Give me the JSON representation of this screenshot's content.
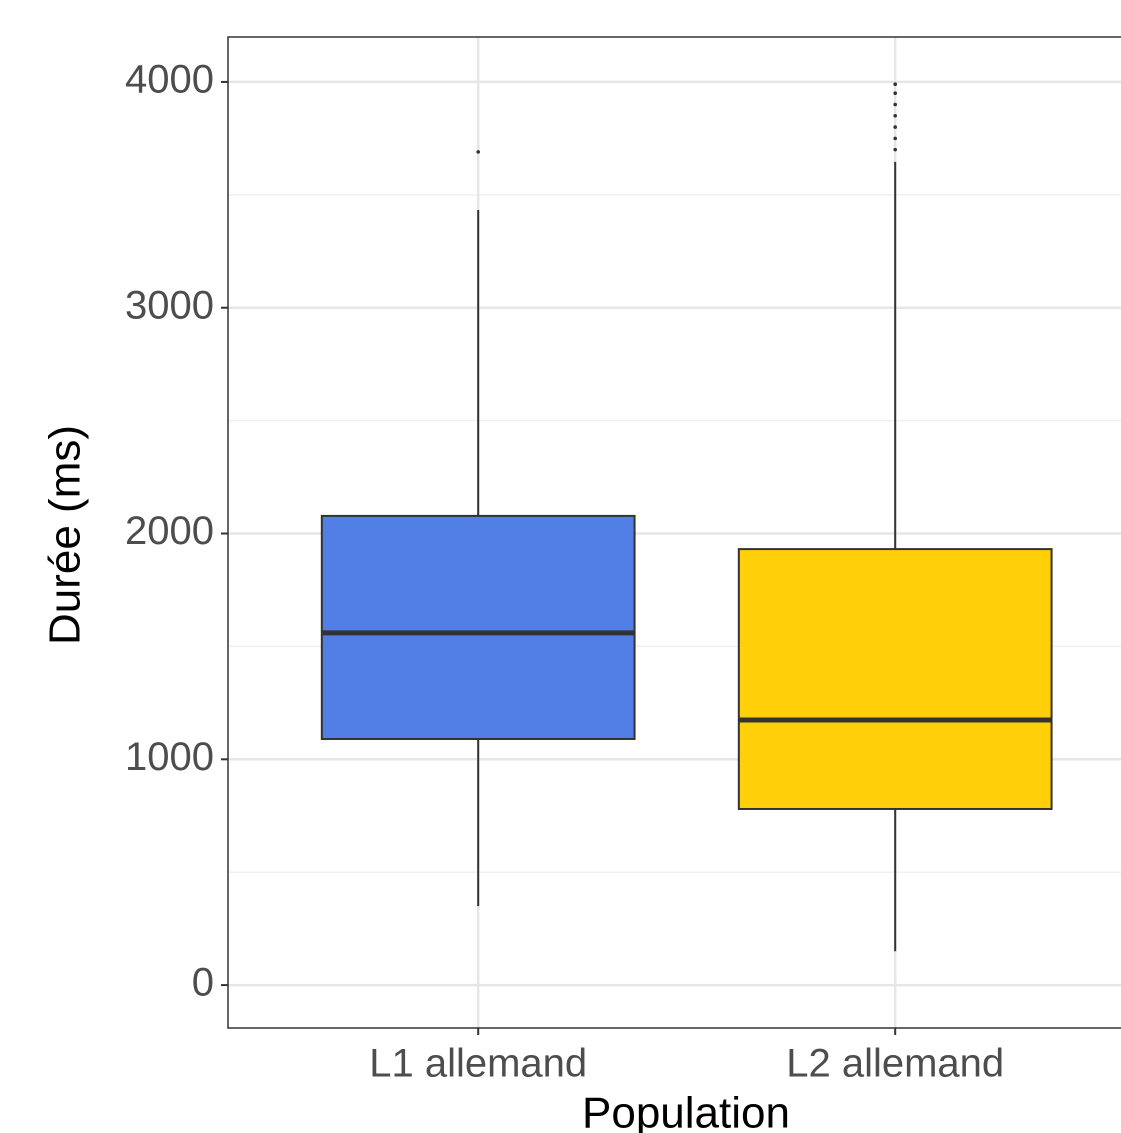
{
  "chart_data": {
    "type": "boxplot",
    "x_label": "Population",
    "y_label": "Durée (ms)",
    "categories": [
      "L1 allemand",
      "L2 allemand"
    ],
    "colors": [
      "#527fe6",
      "#ffd00a"
    ],
    "boxes": [
      {
        "whisker_low": 350,
        "q1": 1090,
        "median": 1560,
        "q3": 2078,
        "whisker_high": 3433,
        "outliers": [
          3690
        ]
      },
      {
        "whisker_low": 150,
        "q1": 780,
        "median": 1174,
        "q3": 1931,
        "whisker_high": 3646,
        "outliers": [
          3700,
          3750,
          3800,
          3850,
          3900,
          3950,
          3990
        ]
      }
    ],
    "ylim": [
      -190,
      4199
    ],
    "yticks": [
      0,
      1000,
      2000,
      3000,
      4000
    ],
    "yminorticks": [
      500,
      1500,
      2500,
      3500
    ],
    "grid": true
  }
}
